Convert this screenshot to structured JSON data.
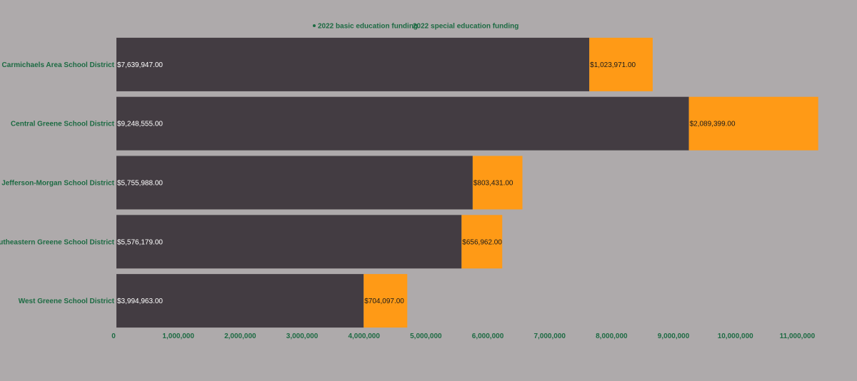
{
  "chart_data": {
    "type": "bar",
    "orientation": "horizontal",
    "stacked": true,
    "title": "",
    "xlabel": "",
    "ylabel": "",
    "categories": [
      "Carmichaels Area School District",
      "Central Greene School District",
      "Jefferson-Morgan School District",
      "Southeastern Greene School District",
      "West Greene School District"
    ],
    "series": [
      {
        "name": "2022 basic education funding",
        "color": "#433c42",
        "label_color": "#ffffff",
        "values": [
          7639947,
          9248555,
          5755988,
          5576179,
          3994963
        ],
        "labels": [
          "$7,639,947.00",
          "$9,248,555.00",
          "$5,755,988.00",
          "$5,576,179.00",
          "$3,994,963.00"
        ]
      },
      {
        "name": "2022 special education funding",
        "color": "#ff9a16",
        "label_color": "#1a1a1a",
        "values": [
          1023971,
          2089399,
          803431,
          656962,
          704097
        ],
        "labels": [
          "$1,023,971.00",
          "$2,089,399.00",
          "$803,431.00",
          "$656,962.00",
          "$704,097.00"
        ]
      }
    ],
    "xlim": [
      0,
      11500000
    ],
    "x_ticks": [
      0,
      1000000,
      2000000,
      3000000,
      4000000,
      5000000,
      6000000,
      7000000,
      8000000,
      9000000,
      10000000,
      11000000
    ],
    "x_tick_labels": [
      "0",
      "1,000,000",
      "2,000,000",
      "3,000,000",
      "4,000,000",
      "5,000,000",
      "6,000,000",
      "7,000,000",
      "8,000,000",
      "9,000,000",
      "10,000,000",
      "11,000,000"
    ],
    "grid": false,
    "legend_position": "top-center"
  }
}
